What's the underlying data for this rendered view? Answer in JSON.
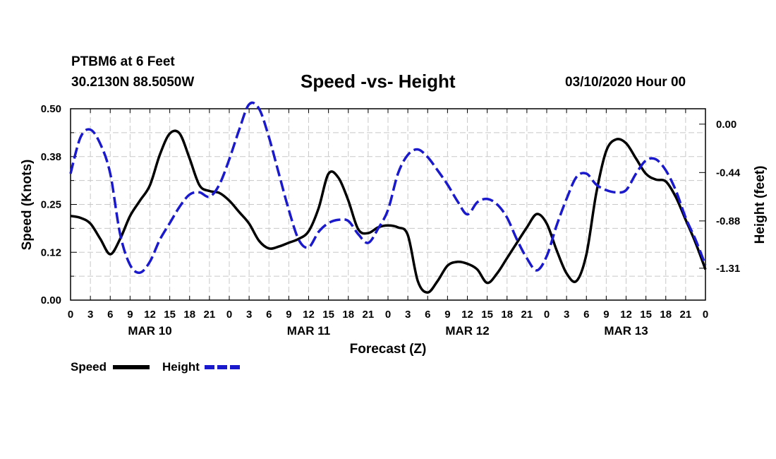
{
  "header": {
    "station": "PTBM6 at 6 Feet",
    "coords": "30.2130N 88.5050W",
    "title": "Speed -vs- Height",
    "datetime": "03/10/2020 Hour 00"
  },
  "chart_data": {
    "type": "line",
    "title": "Speed -vs- Height",
    "xlabel": "Forecast (Z)",
    "ylabel_left": "Speed (Knots)",
    "ylabel_right": "Height (feet)",
    "x_range_hours": [
      0,
      96
    ],
    "ylim_left": [
      0,
      0.5
    ],
    "ylim_right": [
      -1.6,
      0.14
    ],
    "left_ticks": [
      {
        "value": 0.0,
        "label": "0.00"
      },
      {
        "value": 0.125,
        "label": "0.12"
      },
      {
        "value": 0.25,
        "label": "0.25"
      },
      {
        "value": 0.375,
        "label": "0.38"
      },
      {
        "value": 0.5,
        "label": "0.50"
      }
    ],
    "right_ticks": [
      {
        "value": 0.0,
        "label": "0.00"
      },
      {
        "value": -0.44,
        "label": "-0.44"
      },
      {
        "value": -0.88,
        "label": "-0.88"
      },
      {
        "value": -1.31,
        "label": "-1.31"
      }
    ],
    "x_ticks": [
      {
        "hour": 0,
        "label": "0"
      },
      {
        "hour": 3,
        "label": "3"
      },
      {
        "hour": 6,
        "label": "6"
      },
      {
        "hour": 9,
        "label": "9"
      },
      {
        "hour": 12,
        "label": "12"
      },
      {
        "hour": 15,
        "label": "15"
      },
      {
        "hour": 18,
        "label": "18"
      },
      {
        "hour": 21,
        "label": "21"
      },
      {
        "hour": 24,
        "label": "0"
      },
      {
        "hour": 27,
        "label": "3"
      },
      {
        "hour": 30,
        "label": "6"
      },
      {
        "hour": 33,
        "label": "9"
      },
      {
        "hour": 36,
        "label": "12"
      },
      {
        "hour": 39,
        "label": "15"
      },
      {
        "hour": 42,
        "label": "18"
      },
      {
        "hour": 45,
        "label": "21"
      },
      {
        "hour": 48,
        "label": "0"
      },
      {
        "hour": 51,
        "label": "3"
      },
      {
        "hour": 54,
        "label": "6"
      },
      {
        "hour": 57,
        "label": "9"
      },
      {
        "hour": 60,
        "label": "12"
      },
      {
        "hour": 63,
        "label": "15"
      },
      {
        "hour": 66,
        "label": "18"
      },
      {
        "hour": 69,
        "label": "21"
      },
      {
        "hour": 72,
        "label": "0"
      },
      {
        "hour": 75,
        "label": "3"
      },
      {
        "hour": 78,
        "label": "6"
      },
      {
        "hour": 81,
        "label": "9"
      },
      {
        "hour": 84,
        "label": "12"
      },
      {
        "hour": 87,
        "label": "15"
      },
      {
        "hour": 90,
        "label": "18"
      },
      {
        "hour": 93,
        "label": "21"
      },
      {
        "hour": 96,
        "label": "0"
      }
    ],
    "date_labels": [
      {
        "hour": 12,
        "label": "MAR 10"
      },
      {
        "hour": 36,
        "label": "MAR 11"
      },
      {
        "hour": 60,
        "label": "MAR 12"
      },
      {
        "hour": 84,
        "label": "MAR 13"
      }
    ],
    "legend": [
      {
        "name": "Speed",
        "color": "#000000",
        "style": "solid"
      },
      {
        "name": "Height",
        "color": "#1a1acc",
        "style": "dashed"
      }
    ],
    "legend_position": "bottom-left",
    "grid": true,
    "series": [
      {
        "name": "Speed",
        "axis": "left",
        "color": "#000000",
        "x": [
          0,
          1.5,
          3,
          4.5,
          6,
          7.5,
          9,
          10.5,
          12,
          13.5,
          15,
          16.5,
          18,
          19.5,
          21,
          22.5,
          24,
          25.5,
          27,
          28.5,
          30,
          31.5,
          33,
          34.5,
          36,
          37.5,
          39,
          40.5,
          42,
          43.5,
          45,
          46.5,
          48,
          49.5,
          51,
          52.5,
          54,
          55.5,
          57,
          58.5,
          60,
          61.5,
          63,
          64.5,
          66,
          67.5,
          69,
          70.5,
          72,
          73.5,
          75,
          76.5,
          78,
          79.5,
          81,
          82.5,
          84,
          85.5,
          87,
          88.5,
          90,
          91.5,
          93,
          94.5,
          96
        ],
        "values": [
          0.22,
          0.215,
          0.2,
          0.16,
          0.12,
          0.16,
          0.22,
          0.26,
          0.3,
          0.38,
          0.435,
          0.435,
          0.37,
          0.3,
          0.285,
          0.28,
          0.26,
          0.23,
          0.2,
          0.155,
          0.135,
          0.14,
          0.15,
          0.16,
          0.18,
          0.24,
          0.33,
          0.32,
          0.26,
          0.185,
          0.175,
          0.19,
          0.195,
          0.19,
          0.17,
          0.05,
          0.02,
          0.05,
          0.09,
          0.1,
          0.095,
          0.08,
          0.045,
          0.07,
          0.11,
          0.15,
          0.19,
          0.225,
          0.2,
          0.13,
          0.07,
          0.05,
          0.12,
          0.28,
          0.39,
          0.42,
          0.41,
          0.37,
          0.33,
          0.315,
          0.31,
          0.27,
          0.21,
          0.15,
          0.08
        ]
      },
      {
        "name": "Height",
        "axis": "right",
        "color": "#1a1acc",
        "x": [
          0,
          1.5,
          3,
          4.5,
          6,
          7.5,
          9,
          10.5,
          12,
          13.5,
          15,
          16.5,
          18,
          19.5,
          21,
          22.5,
          24,
          25.5,
          27,
          28.5,
          30,
          31.5,
          33,
          34.5,
          36,
          37.5,
          39,
          40.5,
          42,
          43.5,
          45,
          46.5,
          48,
          49.5,
          51,
          52.5,
          54,
          55.5,
          57,
          58.5,
          60,
          61.5,
          63,
          64.5,
          66,
          67.5,
          69,
          70.5,
          72,
          73.5,
          75,
          76.5,
          78,
          79.5,
          81,
          82.5,
          84,
          85.5,
          87,
          88.5,
          90,
          91.5,
          93,
          94.5,
          96
        ],
        "values": [
          -0.45,
          -0.12,
          -0.05,
          -0.18,
          -0.45,
          -1.0,
          -1.28,
          -1.35,
          -1.25,
          -1.05,
          -0.9,
          -0.75,
          -0.64,
          -0.62,
          -0.66,
          -0.55,
          -0.32,
          -0.05,
          0.18,
          0.14,
          -0.12,
          -0.45,
          -0.78,
          -1.05,
          -1.12,
          -0.98,
          -0.9,
          -0.87,
          -0.88,
          -1.0,
          -1.08,
          -0.95,
          -0.78,
          -0.45,
          -0.28,
          -0.23,
          -0.3,
          -0.42,
          -0.55,
          -0.7,
          -0.82,
          -0.71,
          -0.68,
          -0.73,
          -0.85,
          -1.05,
          -1.22,
          -1.33,
          -1.2,
          -0.92,
          -0.68,
          -0.48,
          -0.45,
          -0.55,
          -0.6,
          -0.62,
          -0.6,
          -0.45,
          -0.33,
          -0.32,
          -0.42,
          -0.6,
          -0.85,
          -1.05,
          -1.28
        ]
      }
    ]
  }
}
